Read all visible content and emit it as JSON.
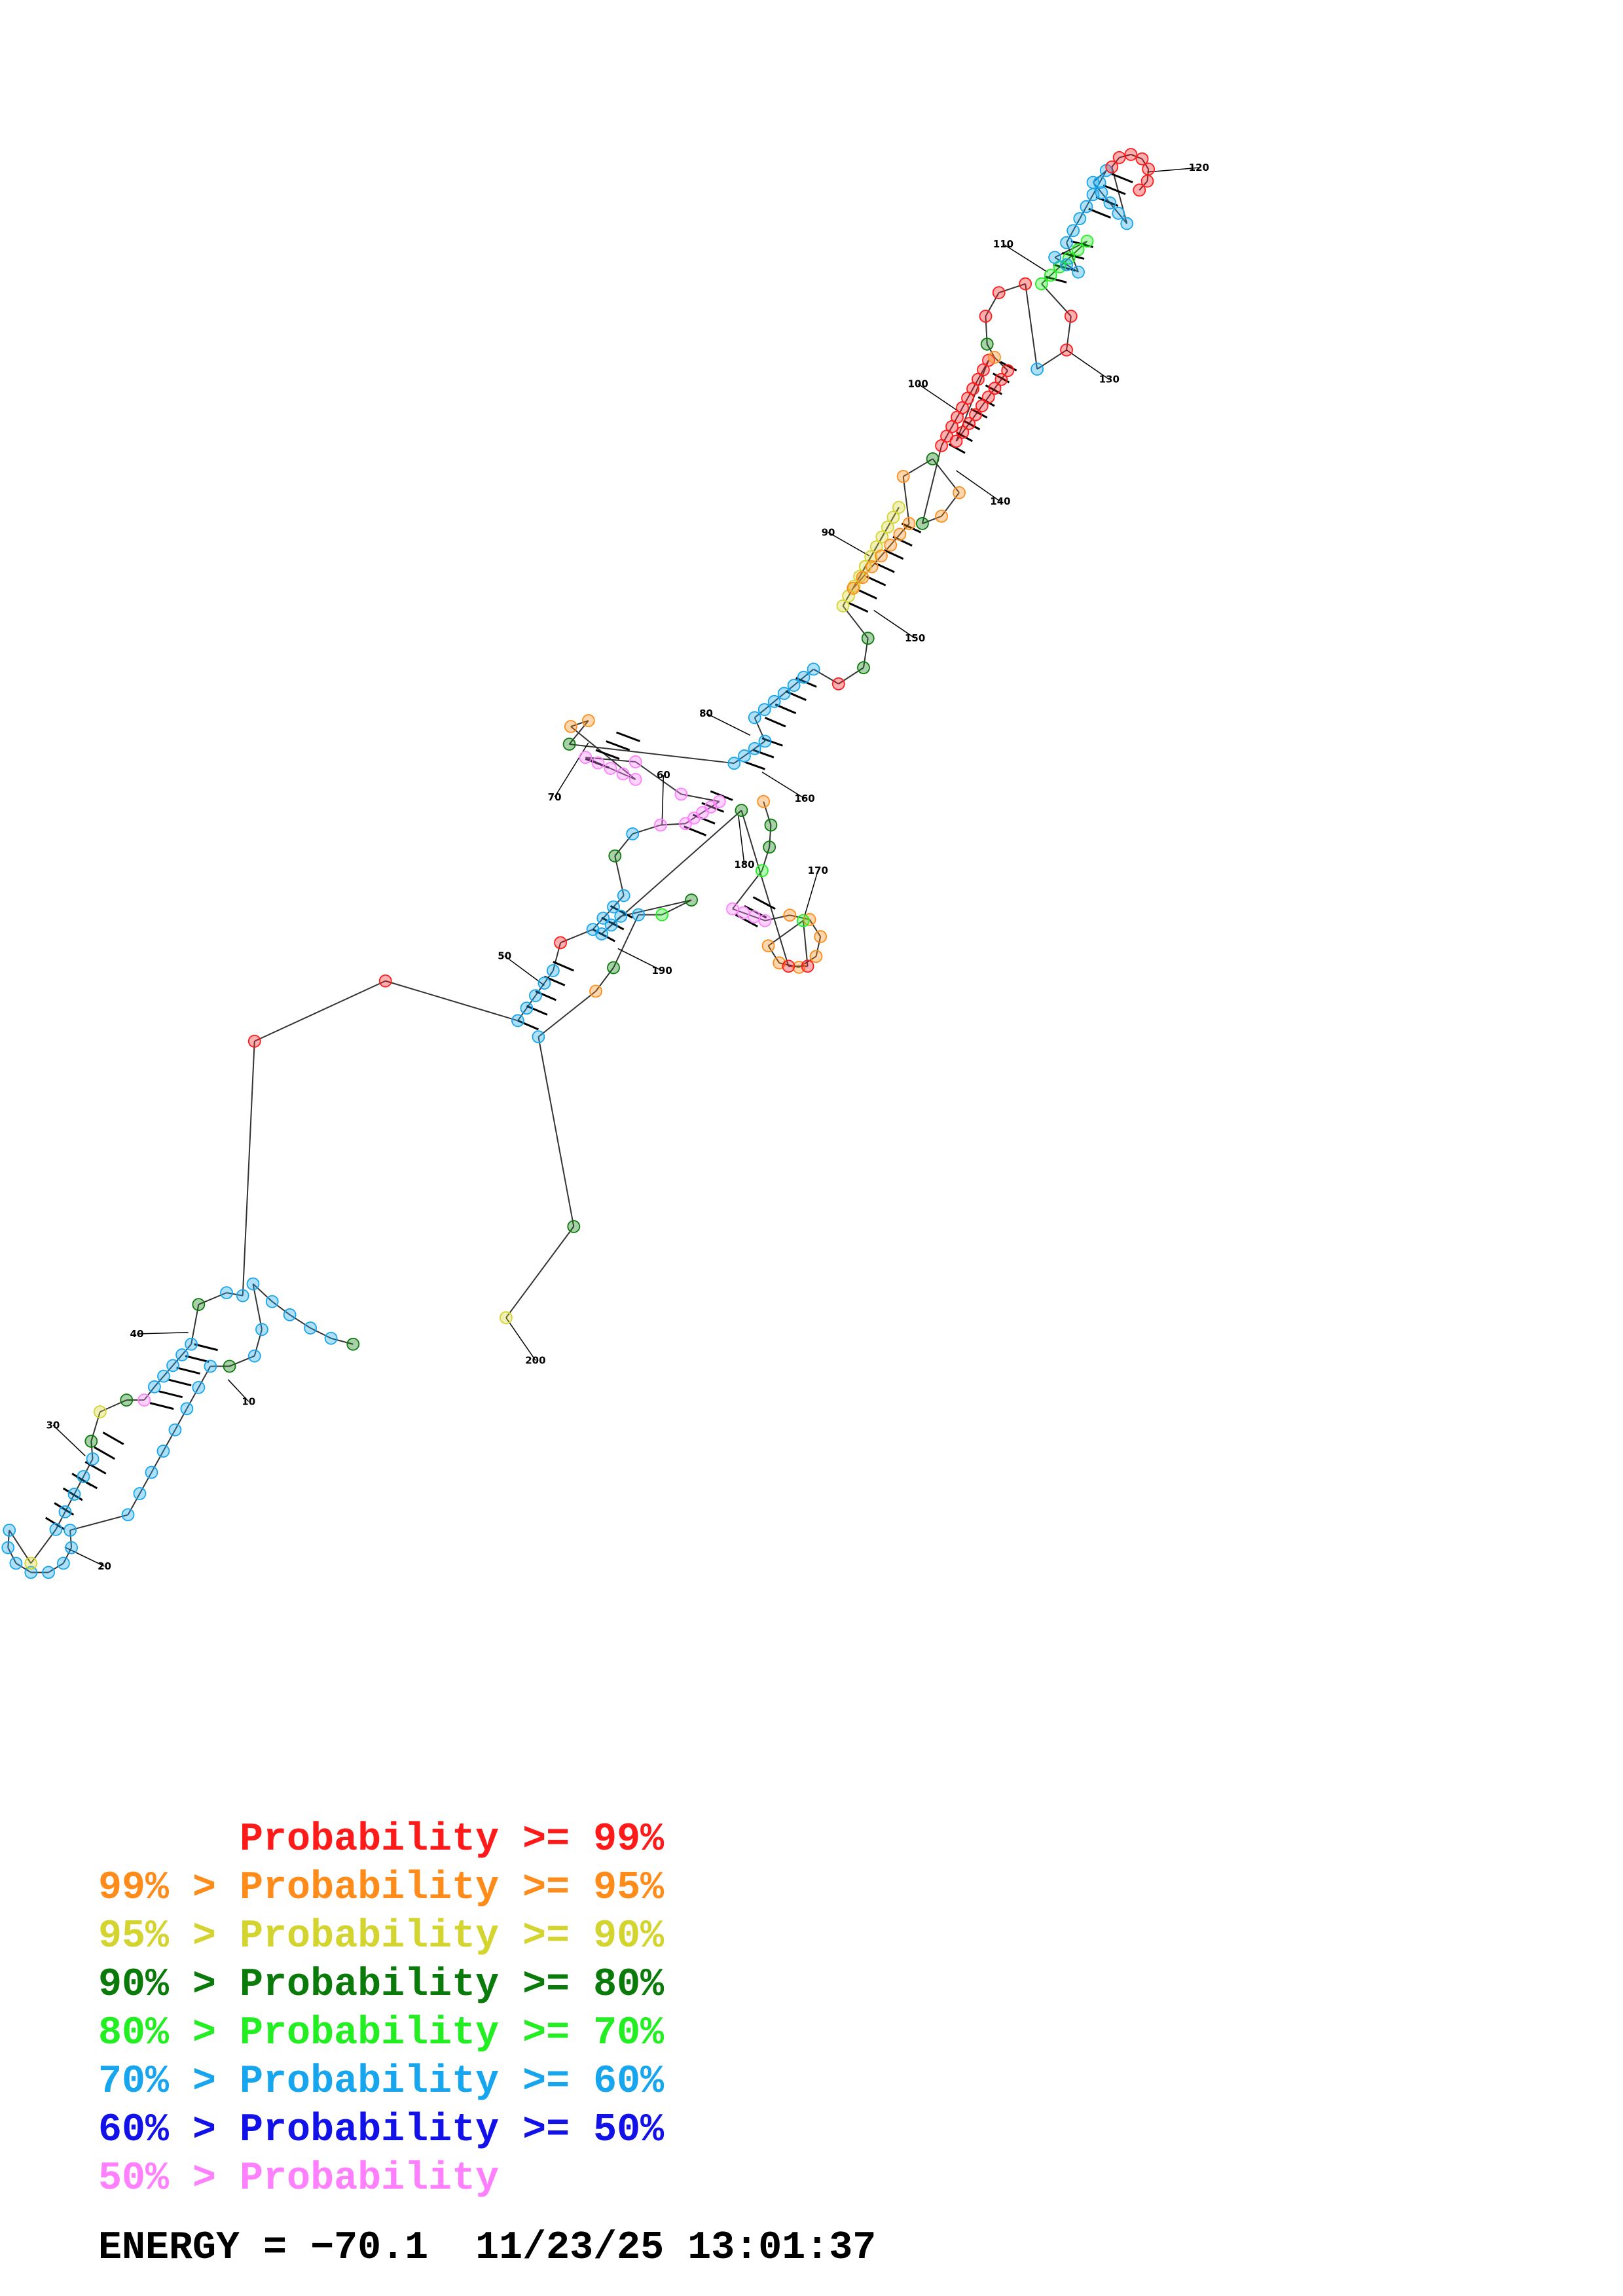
{
  "legend": [
    {
      "prefix": "",
      "text": "Probability >= 99%",
      "color": "#ff1a1a"
    },
    {
      "prefix": "99% > ",
      "text": "Probability >= 95%",
      "color": "#ff8c1a"
    },
    {
      "prefix": "95% > ",
      "text": "Probability >= 90%",
      "color": "#d4d431"
    },
    {
      "prefix": "90% > ",
      "text": "Probability >= 80%",
      "color": "#0a7a0a"
    },
    {
      "prefix": "80% > ",
      "text": "Probability >= 70%",
      "color": "#22ee22"
    },
    {
      "prefix": "70% > ",
      "text": "Probability >= 60%",
      "color": "#17a6ee"
    },
    {
      "prefix": "60% > ",
      "text": "Probability >= 50%",
      "color": "#1212e8"
    },
    {
      "prefix": "50% > ",
      "text": "Probability",
      "color": "#ff80ff"
    }
  ],
  "footer": {
    "energy_label": "ENERGY =",
    "energy_value": "−70.1",
    "date": "11/23/25",
    "time": "13:01:37"
  },
  "position_labels": [
    "10",
    "20",
    "30",
    "40",
    "50",
    "60",
    "70",
    "80",
    "90",
    "100",
    "110",
    "120",
    "130",
    "140",
    "150",
    "160",
    "170",
    "180",
    "190",
    "200"
  ],
  "probability_colors": {
    "p99": "#ff1a1a",
    "p95": "#ff8c1a",
    "p90": "#d4d431",
    "p80": "#0a7a0a",
    "p70": "#22ee22",
    "p60": "#17a6ee",
    "p50": "#1212e8",
    "plow": "#ff80ff"
  }
}
